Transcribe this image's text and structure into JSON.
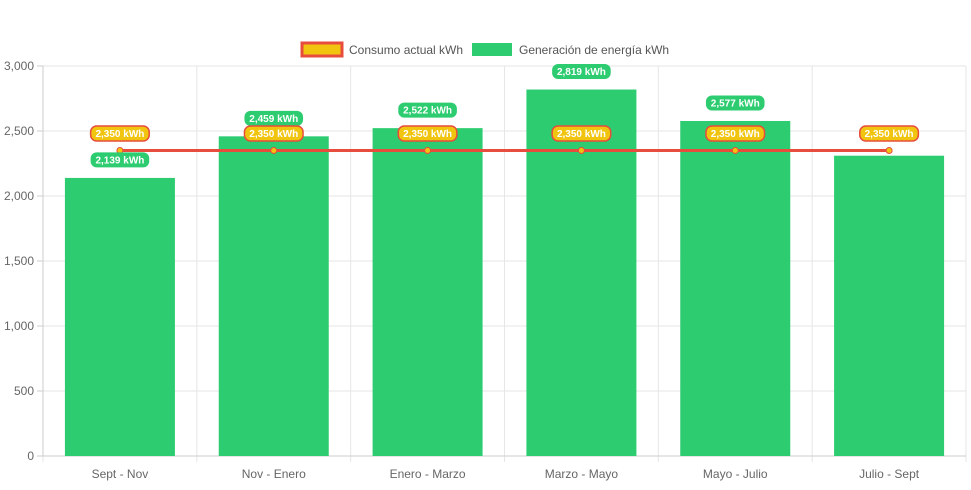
{
  "chart_data": {
    "type": "bar",
    "categories": [
      "Sept - Nov",
      "Nov - Enero",
      "Enero - Marzo",
      "Marzo - Mayo",
      "Mayo - Julio",
      "Julio - Sept"
    ],
    "series": [
      {
        "name": "Consumo actual kWh",
        "render": "line",
        "values": [
          2350,
          2350,
          2350,
          2350,
          2350,
          2350
        ],
        "labels": [
          "2,350 kWh",
          "2,350 kWh",
          "2,350 kWh",
          "2,350 kWh",
          "2,350 kWh",
          "2,350 kWh"
        ],
        "color": "#e74c3c",
        "fill_color": "#f1c40f"
      },
      {
        "name": "Generación de energía kWh",
        "render": "bar",
        "values": [
          2139,
          2459,
          2522,
          2819,
          2577,
          2310
        ],
        "labels": [
          "2,139 kWh",
          "2,459 kWh",
          "2,522 kWh",
          "2,819 kWh",
          "2,577 kWh",
          ""
        ],
        "color": "#2ecc71"
      }
    ],
    "y_ticks": [
      "0",
      "500",
      "1,000",
      "1,500",
      "2,000",
      "2,500",
      "3,000"
    ],
    "y_tick_values": [
      0,
      500,
      1000,
      1500,
      2000,
      2500,
      3000
    ],
    "ylim": [
      0,
      3000
    ],
    "grid": true,
    "legend_position": "top-center"
  }
}
